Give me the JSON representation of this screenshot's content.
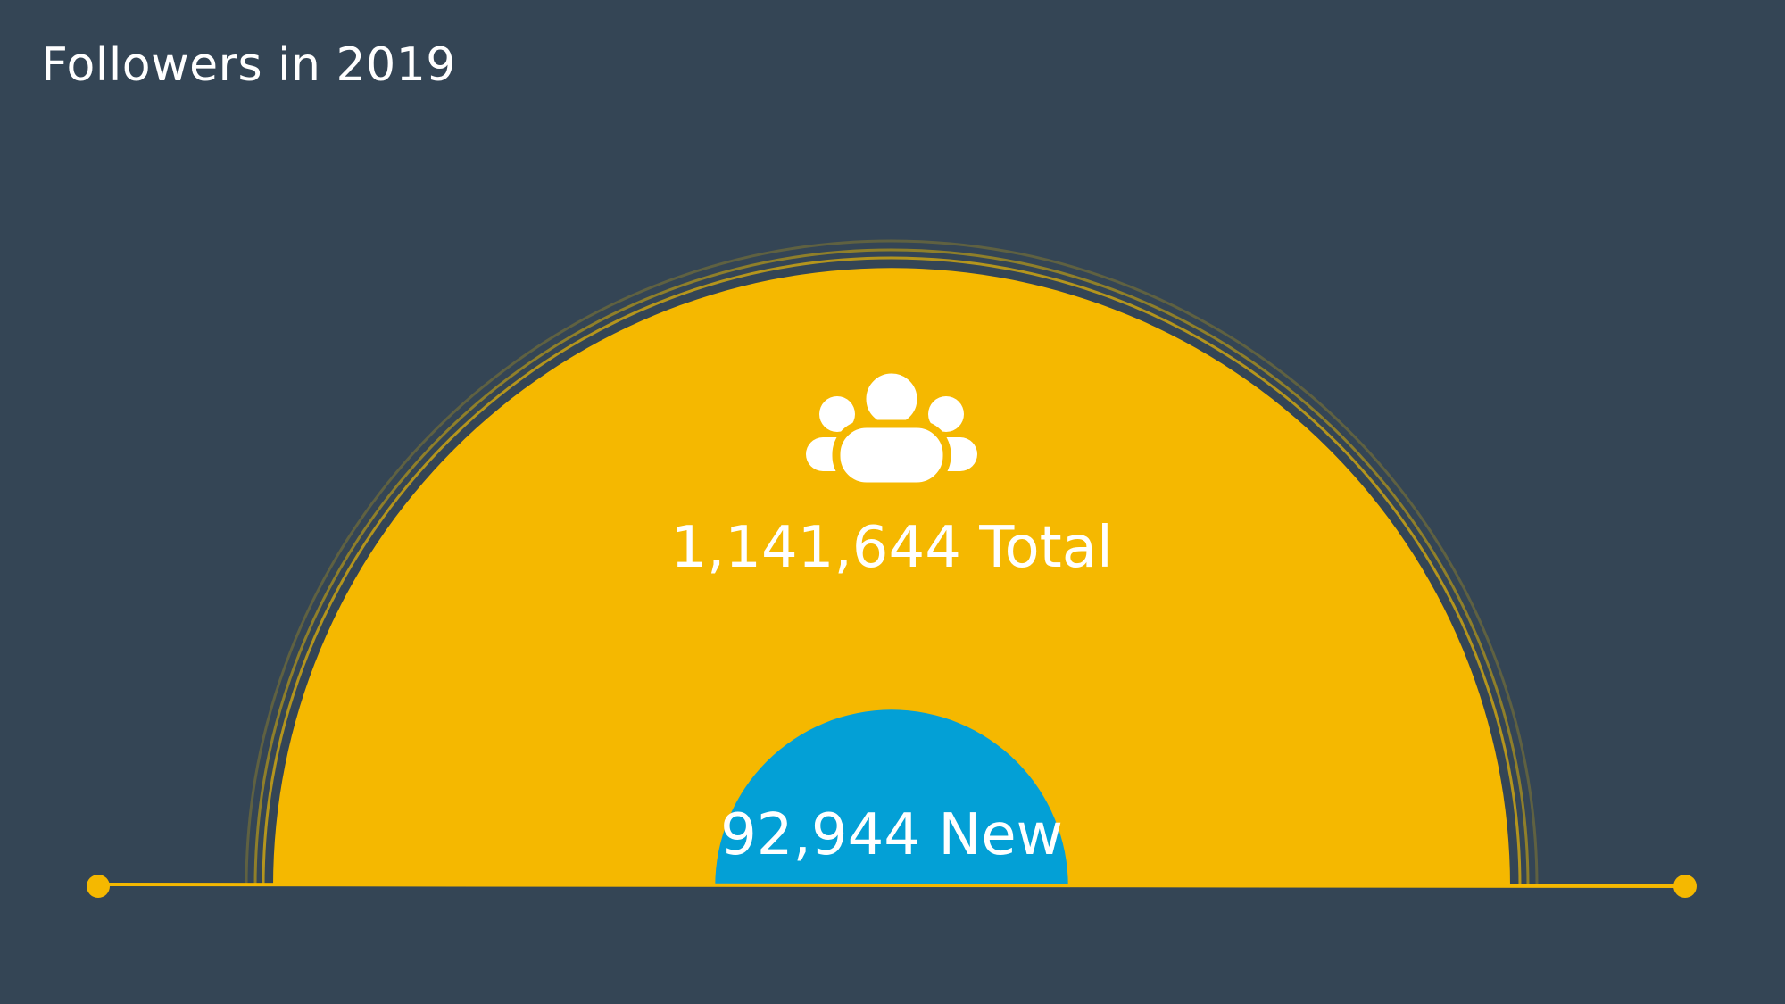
{
  "title": "Followers in 2019",
  "icon": "group-of-people-icon",
  "colors": {
    "background": "#344555",
    "total": "#F5B800",
    "new": "#03A0D6",
    "text": "#FFFFFF"
  },
  "chart_data": {
    "type": "proportional-semicircle",
    "title": "Followers in 2019",
    "series": [
      {
        "name": "Total",
        "value": 1141644,
        "label": "1,141,644 Total"
      },
      {
        "name": "New",
        "value": 92944,
        "label": "92,944 New"
      }
    ]
  }
}
